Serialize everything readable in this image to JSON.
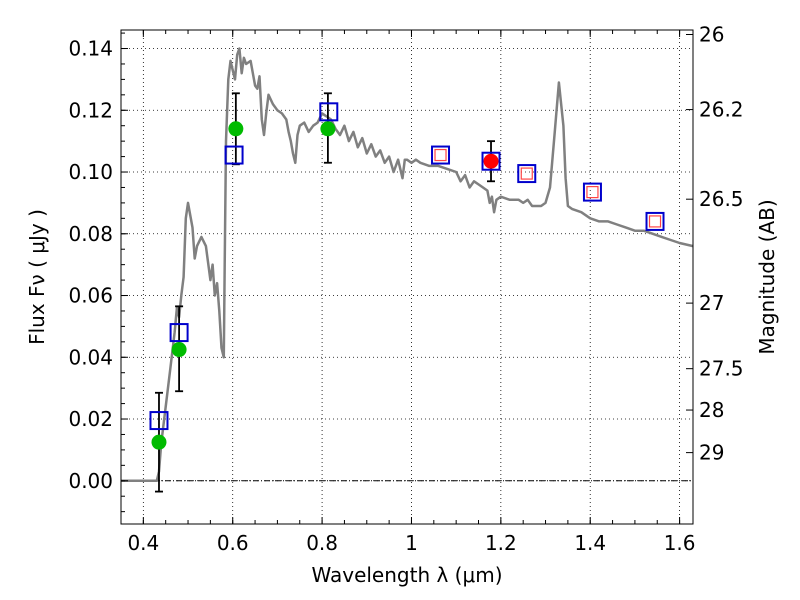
{
  "chart_data": {
    "type": "scatter",
    "title": "",
    "xlabel": "Wavelength  λ (μm)",
    "ylabel": "Flux  Fν  ( μJy )",
    "ylabel_right": "Magnitude (AB)",
    "xlim": [
      0.35,
      1.63
    ],
    "ylim": [
      -0.014,
      0.146
    ],
    "grid": true,
    "x_ticks": [
      0.4,
      0.6,
      0.8,
      1.0,
      1.2,
      1.4,
      1.6
    ],
    "x_tick_labels": [
      "0.4",
      "0.6",
      "0.8",
      "1",
      "1.2",
      "1.4",
      "1.6"
    ],
    "y_ticks": [
      0.0,
      0.02,
      0.04,
      0.06,
      0.08,
      0.1,
      0.12,
      0.14
    ],
    "y_tick_labels": [
      "0.00",
      "0.02",
      "0.04",
      "0.06",
      "0.08",
      "0.10",
      "0.12",
      "0.14"
    ],
    "right_ticks": [
      {
        "label": "26",
        "mag": 26.0
      },
      {
        "label": "26.2",
        "mag": 26.2
      },
      {
        "label": "26.5",
        "mag": 26.5
      },
      {
        "label": "27",
        "mag": 27.0
      },
      {
        "label": "27.5",
        "mag": 27.5
      },
      {
        "label": "28",
        "mag": 28.0
      },
      {
        "label": "29",
        "mag": 29.0
      }
    ],
    "series": [
      {
        "name": "Model SED",
        "kind": "line",
        "color": "#808080",
        "points": [
          [
            0.35,
            0.0
          ],
          [
            0.43,
            0.0
          ],
          [
            0.435,
            0.003
          ],
          [
            0.44,
            0.012
          ],
          [
            0.45,
            0.024
          ],
          [
            0.46,
            0.036
          ],
          [
            0.47,
            0.048
          ],
          [
            0.475,
            0.056
          ],
          [
            0.48,
            0.053
          ],
          [
            0.485,
            0.06
          ],
          [
            0.49,
            0.066
          ],
          [
            0.495,
            0.085
          ],
          [
            0.5,
            0.09
          ],
          [
            0.51,
            0.082
          ],
          [
            0.515,
            0.072
          ],
          [
            0.52,
            0.076
          ],
          [
            0.53,
            0.079
          ],
          [
            0.54,
            0.076
          ],
          [
            0.55,
            0.065
          ],
          [
            0.555,
            0.07
          ],
          [
            0.56,
            0.06
          ],
          [
            0.565,
            0.064
          ],
          [
            0.57,
            0.055
          ],
          [
            0.575,
            0.043
          ],
          [
            0.58,
            0.04
          ],
          [
            0.582,
            0.07
          ],
          [
            0.585,
            0.11
          ],
          [
            0.59,
            0.13
          ],
          [
            0.595,
            0.136
          ],
          [
            0.6,
            0.133
          ],
          [
            0.605,
            0.13
          ],
          [
            0.61,
            0.138
          ],
          [
            0.615,
            0.14
          ],
          [
            0.62,
            0.132
          ],
          [
            0.625,
            0.137
          ],
          [
            0.63,
            0.135
          ],
          [
            0.64,
            0.136
          ],
          [
            0.65,
            0.128
          ],
          [
            0.655,
            0.127
          ],
          [
            0.66,
            0.131
          ],
          [
            0.665,
            0.117
          ],
          [
            0.67,
            0.112
          ],
          [
            0.675,
            0.119
          ],
          [
            0.68,
            0.125
          ],
          [
            0.69,
            0.122
          ],
          [
            0.7,
            0.12
          ],
          [
            0.71,
            0.119
          ],
          [
            0.72,
            0.117
          ],
          [
            0.725,
            0.113
          ],
          [
            0.73,
            0.11
          ],
          [
            0.735,
            0.106
          ],
          [
            0.74,
            0.103
          ],
          [
            0.745,
            0.112
          ],
          [
            0.75,
            0.115
          ],
          [
            0.76,
            0.116
          ],
          [
            0.77,
            0.113
          ],
          [
            0.78,
            0.115
          ],
          [
            0.79,
            0.116
          ],
          [
            0.8,
            0.119
          ],
          [
            0.81,
            0.118
          ],
          [
            0.82,
            0.117
          ],
          [
            0.83,
            0.114
          ],
          [
            0.84,
            0.112
          ],
          [
            0.85,
            0.115
          ],
          [
            0.86,
            0.11
          ],
          [
            0.87,
            0.113
          ],
          [
            0.88,
            0.108
          ],
          [
            0.89,
            0.111
          ],
          [
            0.9,
            0.106
          ],
          [
            0.91,
            0.109
          ],
          [
            0.92,
            0.105
          ],
          [
            0.93,
            0.107
          ],
          [
            0.94,
            0.103
          ],
          [
            0.95,
            0.105
          ],
          [
            0.96,
            0.1
          ],
          [
            0.97,
            0.104
          ],
          [
            0.98,
            0.098
          ],
          [
            0.985,
            0.104
          ],
          [
            0.99,
            0.104
          ],
          [
            1.0,
            0.103
          ],
          [
            1.01,
            0.104
          ],
          [
            1.02,
            0.103
          ],
          [
            1.04,
            0.102
          ],
          [
            1.06,
            0.102
          ],
          [
            1.08,
            0.101
          ],
          [
            1.1,
            0.1
          ],
          [
            1.11,
            0.097
          ],
          [
            1.12,
            0.099
          ],
          [
            1.13,
            0.095
          ],
          [
            1.14,
            0.097
          ],
          [
            1.15,
            0.096
          ],
          [
            1.16,
            0.095
          ],
          [
            1.17,
            0.094
          ],
          [
            1.175,
            0.09
          ],
          [
            1.18,
            0.092
          ],
          [
            1.185,
            0.087
          ],
          [
            1.19,
            0.091
          ],
          [
            1.2,
            0.092
          ],
          [
            1.22,
            0.091
          ],
          [
            1.24,
            0.091
          ],
          [
            1.25,
            0.09
          ],
          [
            1.26,
            0.091
          ],
          [
            1.27,
            0.089
          ],
          [
            1.28,
            0.089
          ],
          [
            1.29,
            0.089
          ],
          [
            1.3,
            0.09
          ],
          [
            1.31,
            0.095
          ],
          [
            1.32,
            0.112
          ],
          [
            1.33,
            0.129
          ],
          [
            1.34,
            0.115
          ],
          [
            1.345,
            0.098
          ],
          [
            1.35,
            0.089
          ],
          [
            1.36,
            0.088
          ],
          [
            1.38,
            0.087
          ],
          [
            1.4,
            0.085
          ],
          [
            1.42,
            0.084
          ],
          [
            1.44,
            0.084
          ],
          [
            1.46,
            0.083
          ],
          [
            1.48,
            0.082
          ],
          [
            1.5,
            0.081
          ],
          [
            1.52,
            0.081
          ],
          [
            1.54,
            0.08
          ],
          [
            1.56,
            0.079
          ],
          [
            1.58,
            0.078
          ],
          [
            1.6,
            0.077
          ],
          [
            1.63,
            0.076
          ]
        ]
      },
      {
        "name": "Photometry (green)",
        "kind": "marker",
        "marker": "circle",
        "color": "#00bb00",
        "points": [
          [
            0.435,
            0.0125
          ],
          [
            0.48,
            0.0425
          ],
          [
            0.607,
            0.114
          ],
          [
            0.813,
            0.114
          ]
        ]
      },
      {
        "name": "Photometry (red)",
        "kind": "marker",
        "marker": "circle",
        "color": "#ff0000",
        "points": [
          [
            1.178,
            0.1035
          ]
        ]
      },
      {
        "name": "Model bandpass flux",
        "kind": "marker",
        "marker": "square",
        "color": "#0000cc",
        "points": [
          [
            0.435,
            0.0195
          ],
          [
            0.48,
            0.048
          ],
          [
            0.603,
            0.1055
          ],
          [
            0.815,
            0.1195
          ],
          [
            1.065,
            0.1055
          ],
          [
            1.178,
            0.1035
          ],
          [
            1.258,
            0.0995
          ],
          [
            1.405,
            0.0935
          ],
          [
            1.545,
            0.084
          ]
        ]
      },
      {
        "name": "Model bandpass flux (inner)",
        "kind": "marker",
        "marker": "square-small",
        "color": "#ff4444",
        "points": [
          [
            1.065,
            0.1055
          ],
          [
            1.258,
            0.0995
          ],
          [
            1.405,
            0.0935
          ],
          [
            1.545,
            0.084
          ]
        ]
      }
    ],
    "error_bars": [
      {
        "x": 0.435,
        "y": 0.0125,
        "low": -0.0035,
        "high": 0.0285
      },
      {
        "x": 0.48,
        "y": 0.0425,
        "low": 0.029,
        "high": 0.0565
      },
      {
        "x": 0.607,
        "y": 0.114,
        "low": 0.1025,
        "high": 0.1255
      },
      {
        "x": 0.813,
        "y": 0.114,
        "low": 0.103,
        "high": 0.1255
      },
      {
        "x": 1.178,
        "y": 0.1035,
        "low": 0.097,
        "high": 0.11
      }
    ]
  }
}
